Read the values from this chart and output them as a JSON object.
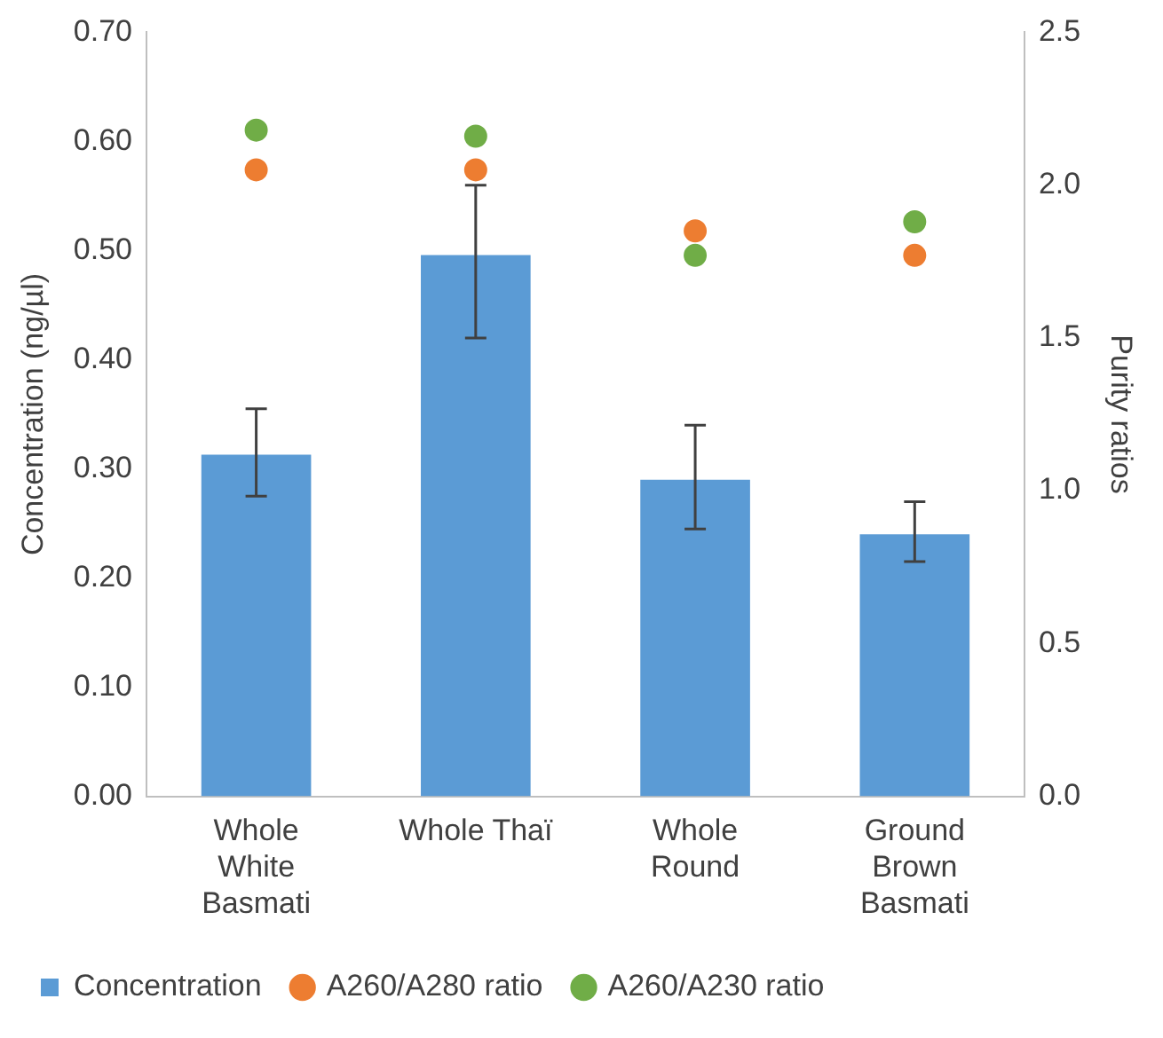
{
  "chart_data": {
    "type": "bar",
    "categories": [
      "Whole White Basmati",
      "Whole Thaï",
      "Whole Round",
      "Ground Brown Basmati"
    ],
    "ylabel": "Concentration (ng/µl)",
    "y2label": "Purity ratios",
    "ylim": [
      0,
      0.7
    ],
    "yticks": [
      {
        "value": 0,
        "label": "0.00"
      },
      {
        "value": 0.1,
        "label": "0.10"
      },
      {
        "value": 0.2,
        "label": "0.20"
      },
      {
        "value": 0.3,
        "label": "0.30"
      },
      {
        "value": 0.4,
        "label": "0.40"
      },
      {
        "value": 0.5,
        "label": "0.50"
      },
      {
        "value": 0.6,
        "label": "0.60"
      },
      {
        "value": 0.7,
        "label": "0.70"
      }
    ],
    "y2lim": [
      0,
      2.5
    ],
    "y2ticks": [
      {
        "value": 0,
        "label": "0.0"
      },
      {
        "value": 0.5,
        "label": "0.5"
      },
      {
        "value": 1,
        "label": "1.0"
      },
      {
        "value": 1.5,
        "label": "1.5"
      },
      {
        "value": 2,
        "label": "2.0"
      },
      {
        "value": 2.5,
        "label": "2.5"
      }
    ],
    "grid": false,
    "legend": "bottom",
    "marker": "circle",
    "series": [
      {
        "name": "Concentration",
        "color": "#5b9bd5",
        "values": [
          0.313,
          0.496,
          0.29,
          0.24
        ],
        "errors": [
          [
            0.275,
            0.355
          ],
          [
            0.42,
            0.56
          ],
          [
            0.245,
            0.34
          ],
          [
            0.215,
            0.27
          ]
        ]
      },
      {
        "name": "A260/A280 ratio",
        "type": "scatter",
        "axis": "y2",
        "color": "#ed7d31",
        "x": [
          "Whole White Basmati",
          "Whole Thaï",
          "Whole Round",
          "Ground Brown Basmati"
        ],
        "values": [
          2.05,
          2.05,
          1.85,
          1.77
        ]
      },
      {
        "name": "A260/A230 ratio",
        "type": "scatter",
        "axis": "y2",
        "color": "#70ad47",
        "x": [
          "Whole White Basmati",
          "Whole Thaï",
          "Whole Round",
          "Ground Brown Basmati"
        ],
        "values": [
          2.18,
          2.16,
          1.77,
          1.88
        ]
      }
    ]
  }
}
